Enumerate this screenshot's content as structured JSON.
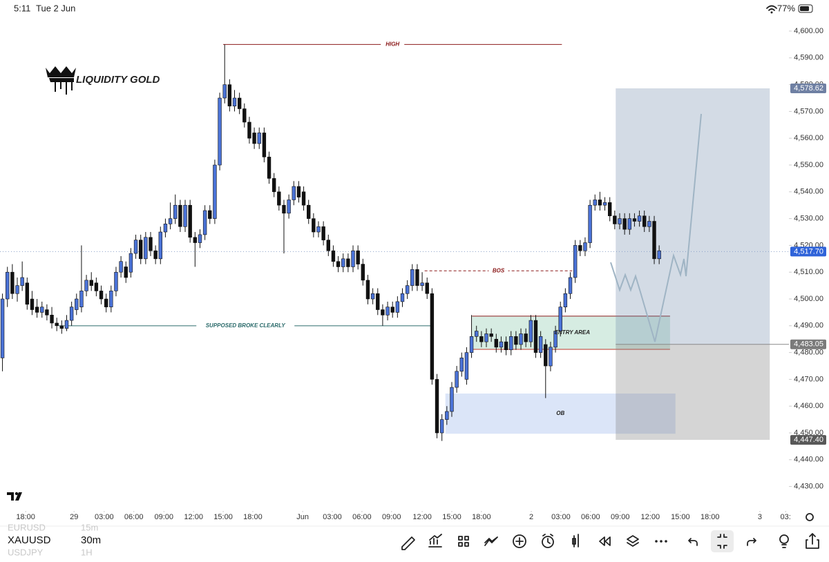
{
  "status_bar": {
    "time": "5:11",
    "date": "Tue 2 Jun",
    "battery": "77%"
  },
  "logo": "LIQUIDITY GOLD",
  "chart_data": {
    "type": "candlestick",
    "symbol": "XAUUSD",
    "timeframe": "30m",
    "up_color": "#4a72d6",
    "down_color": "#111111",
    "ylim": [
      4421.4,
      4611.6
    ],
    "yticks": [
      {
        "value": 4430,
        "label": "4,430.00"
      },
      {
        "value": 4440,
        "label": "4,440.00"
      },
      {
        "value": 4450,
        "label": "4,450.00"
      },
      {
        "value": 4460,
        "label": "4,460.00"
      },
      {
        "value": 4470,
        "label": "4,470.00"
      },
      {
        "value": 4480,
        "label": "4,480.00"
      },
      {
        "value": 4490,
        "label": "4,490.00"
      },
      {
        "value": 4500,
        "label": "4,500.00"
      },
      {
        "value": 4510,
        "label": "4,510.00"
      },
      {
        "value": 4520,
        "label": "4,520.00"
      },
      {
        "value": 4530,
        "label": "4,530.00"
      },
      {
        "value": 4540,
        "label": "4,540.00"
      },
      {
        "value": 4550,
        "label": "4,550.00"
      },
      {
        "value": 4560,
        "label": "4,560.00"
      },
      {
        "value": 4570,
        "label": "4,570.00"
      },
      {
        "value": 4580,
        "label": "4,580.00"
      },
      {
        "value": 4590,
        "label": "4,590.00"
      },
      {
        "value": 4600,
        "label": "4,600.00"
      }
    ],
    "xlim": [
      -0.5,
      159
    ],
    "xticks": [
      {
        "value": 4.7,
        "label": "18:00"
      },
      {
        "value": 14.5,
        "label": "29"
      },
      {
        "value": 20.6,
        "label": "03:00"
      },
      {
        "value": 26.6,
        "label": "06:00"
      },
      {
        "value": 32.7,
        "label": "09:00"
      },
      {
        "value": 38.7,
        "label": "12:00"
      },
      {
        "value": 44.7,
        "label": "15:00"
      },
      {
        "value": 50.7,
        "label": "18:00"
      },
      {
        "value": 60.8,
        "label": "Jun"
      },
      {
        "value": 66.8,
        "label": "03:00"
      },
      {
        "value": 72.8,
        "label": "06:00"
      },
      {
        "value": 78.8,
        "label": "09:00"
      },
      {
        "value": 85,
        "label": "12:00"
      },
      {
        "value": 91,
        "label": "15:00"
      },
      {
        "value": 97,
        "label": "18:00"
      },
      {
        "value": 107.1,
        "label": "2"
      },
      {
        "value": 113.1,
        "label": "03:00"
      },
      {
        "value": 119.1,
        "label": "06:00"
      },
      {
        "value": 125.1,
        "label": "09:00"
      },
      {
        "value": 131.2,
        "label": "12:00"
      },
      {
        "value": 137.3,
        "label": "15:00"
      },
      {
        "value": 143.3,
        "label": "18:00"
      },
      {
        "value": 153.4,
        "label": "3"
      },
      {
        "value": 158.6,
        "label": "03:"
      }
    ],
    "candles": [
      [
        4478,
        4502,
        4473,
        4500
      ],
      [
        4500,
        4512,
        4497,
        4510
      ],
      [
        4510,
        4513,
        4500,
        4502
      ],
      [
        4502,
        4508,
        4499,
        4505
      ],
      [
        4505,
        4514,
        4503,
        4508
      ],
      [
        4506,
        4508,
        4496,
        4498
      ],
      [
        4500,
        4503,
        4494,
        4496
      ],
      [
        4497,
        4500,
        4493,
        4495
      ],
      [
        4495,
        4499,
        4493,
        4497
      ],
      [
        4496,
        4498,
        4492,
        4494
      ],
      [
        4494,
        4497,
        4489,
        4491
      ],
      [
        4491,
        4493,
        4488,
        4490
      ],
      [
        4490,
        4492,
        4487,
        4489
      ],
      [
        4489,
        4494,
        4488,
        4492
      ],
      [
        4492,
        4499,
        4490,
        4497
      ],
      [
        4496,
        4502,
        4494,
        4500
      ],
      [
        4497,
        4520,
        4495,
        4503
      ],
      [
        4503,
        4509,
        4501,
        4507
      ],
      [
        4507,
        4510,
        4503,
        4505
      ],
      [
        4506,
        4508,
        4501,
        4503
      ],
      [
        4503,
        4505,
        4498,
        4500
      ],
      [
        4500,
        4502,
        4495,
        4497
      ],
      [
        4497,
        4505,
        4495,
        4503
      ],
      [
        4503,
        4512,
        4501,
        4510
      ],
      [
        4510,
        4516,
        4508,
        4514
      ],
      [
        4512,
        4514,
        4506,
        4508
      ],
      [
        4510,
        4519,
        4508,
        4517
      ],
      [
        4517,
        4524,
        4515,
        4522
      ],
      [
        4522,
        4524,
        4513,
        4515
      ],
      [
        4515,
        4525,
        4513,
        4523
      ],
      [
        4523,
        4525,
        4516,
        4518
      ],
      [
        4518,
        4520,
        4513,
        4515
      ],
      [
        4515,
        4527,
        4513,
        4525
      ],
      [
        4525,
        4530,
        4523,
        4528
      ],
      [
        4528,
        4536,
        4526,
        4530
      ],
      [
        4530,
        4539,
        4528,
        4535
      ],
      [
        4535,
        4537,
        4525,
        4527
      ],
      [
        4527,
        4537,
        4525,
        4535
      ],
      [
        4535,
        4537,
        4521,
        4523
      ],
      [
        4523,
        4525,
        4512,
        4521
      ],
      [
        4521,
        4526,
        4519,
        4524
      ],
      [
        4524,
        4535,
        4522,
        4533
      ],
      [
        4533,
        4535,
        4528,
        4530
      ],
      [
        4530,
        4552,
        4528,
        4550
      ],
      [
        4550,
        4577,
        4548,
        4575
      ],
      [
        4575,
        4595,
        4573,
        4580
      ],
      [
        4580,
        4582,
        4570,
        4572
      ],
      [
        4572,
        4578,
        4570,
        4575
      ],
      [
        4575,
        4577,
        4569,
        4571
      ],
      [
        4571,
        4573,
        4564,
        4566
      ],
      [
        4566,
        4568,
        4558,
        4560
      ],
      [
        4562,
        4564,
        4556,
        4558
      ],
      [
        4558,
        4564,
        4556,
        4562
      ],
      [
        4562,
        4564,
        4551,
        4553
      ],
      [
        4553,
        4555,
        4543,
        4545
      ],
      [
        4545,
        4547,
        4538,
        4540
      ],
      [
        4540,
        4542,
        4533,
        4535
      ],
      [
        4535,
        4537,
        4517,
        4532
      ],
      [
        4532,
        4539,
        4530,
        4537
      ],
      [
        4537,
        4544,
        4535,
        4542
      ],
      [
        4542,
        4544,
        4536,
        4538
      ],
      [
        4540,
        4542,
        4533,
        4535
      ],
      [
        4535,
        4537,
        4528,
        4530
      ],
      [
        4530,
        4532,
        4523,
        4525
      ],
      [
        4525,
        4529,
        4523,
        4527
      ],
      [
        4527,
        4529,
        4520,
        4522
      ],
      [
        4522,
        4524,
        4516,
        4518
      ],
      [
        4518,
        4520,
        4512,
        4514
      ],
      [
        4514,
        4516,
        4510,
        4512
      ],
      [
        4512,
        4517,
        4510,
        4515
      ],
      [
        4515,
        4517,
        4510,
        4512
      ],
      [
        4512,
        4520,
        4510,
        4518
      ],
      [
        4518,
        4520,
        4511,
        4513
      ],
      [
        4513,
        4515,
        4505,
        4507
      ],
      [
        4507,
        4509,
        4498,
        4500
      ],
      [
        4500,
        4504,
        4498,
        4502
      ],
      [
        4502,
        4504,
        4494,
        4496
      ],
      [
        4496,
        4498,
        4490,
        4494
      ],
      [
        4494,
        4499,
        4492,
        4497
      ],
      [
        4497,
        4499,
        4493,
        4495
      ],
      [
        4495,
        4501,
        4493,
        4499
      ],
      [
        4499,
        4504,
        4497,
        4502
      ],
      [
        4502,
        4507,
        4500,
        4505
      ],
      [
        4505,
        4513,
        4503,
        4511
      ],
      [
        4511,
        4513,
        4503,
        4505
      ],
      [
        4505,
        4510,
        4503,
        4506
      ],
      [
        4506,
        4508,
        4500,
        4502
      ],
      [
        4502,
        4504,
        4468,
        4470
      ],
      [
        4470,
        4472,
        4448,
        4450
      ],
      [
        4450,
        4457,
        4447,
        4455
      ],
      [
        4455,
        4460,
        4453,
        4458
      ],
      [
        4458,
        4469,
        4456,
        4467
      ],
      [
        4467,
        4475,
        4465,
        4473
      ],
      [
        4473,
        4480,
        4471,
        4478
      ],
      [
        4470,
        4482,
        4468,
        4480
      ],
      [
        4480,
        4494,
        4478,
        4486
      ],
      [
        4486,
        4490,
        4484,
        4488
      ],
      [
        4486,
        4488,
        4482,
        4484
      ],
      [
        4484,
        4489,
        4482,
        4487
      ],
      [
        4487,
        4489,
        4484,
        4486
      ],
      [
        4485,
        4487,
        4480,
        4482
      ],
      [
        4482,
        4486,
        4480,
        4484
      ],
      [
        4484,
        4486,
        4479,
        4481
      ],
      [
        4481,
        4488,
        4479,
        4486
      ],
      [
        4486,
        4488,
        4481,
        4483
      ],
      [
        4483,
        4489,
        4481,
        4487
      ],
      [
        4487,
        4489,
        4482,
        4484
      ],
      [
        4484,
        4494,
        4482,
        4492
      ],
      [
        4492,
        4494,
        4478,
        4480
      ],
      [
        4480,
        4488,
        4478,
        4486
      ],
      [
        4483,
        4485,
        4463,
        4475
      ],
      [
        4475,
        4484,
        4473,
        4482
      ],
      [
        4482,
        4490,
        4480,
        4488
      ],
      [
        4488,
        4499,
        4486,
        4497
      ],
      [
        4497,
        4504,
        4495,
        4502
      ],
      [
        4502,
        4510,
        4500,
        4508
      ],
      [
        4508,
        4522,
        4506,
        4520
      ],
      [
        4520,
        4522,
        4516,
        4518
      ],
      [
        4518,
        4523,
        4516,
        4521
      ],
      [
        4521,
        4537,
        4519,
        4535
      ],
      [
        4535,
        4539,
        4533,
        4537
      ],
      [
        4537,
        4540,
        4533,
        4535
      ],
      [
        4535,
        4538,
        4533,
        4536
      ],
      [
        4536,
        4538,
        4529,
        4531
      ],
      [
        4531,
        4533,
        4526,
        4528
      ],
      [
        4528,
        4532,
        4526,
        4530
      ],
      [
        4530,
        4532,
        4524,
        4526
      ],
      [
        4526,
        4532,
        4524,
        4530
      ],
      [
        4530,
        4532,
        4527,
        4529
      ],
      [
        4529,
        4533,
        4527,
        4531
      ],
      [
        4531,
        4533,
        4525,
        4527
      ],
      [
        4527,
        4531,
        4525,
        4529
      ],
      [
        4529,
        4531,
        4513,
        4515
      ],
      [
        4515,
        4520,
        4513,
        4518
      ]
    ],
    "last_price": {
      "value": 4517.7,
      "label": "4,517.70",
      "color": "#2f63d9"
    },
    "position": {
      "from": 124.2,
      "to": 155.4,
      "target": {
        "value": 4578.62,
        "label": "4,578.62",
        "color": "#6f80a3"
      },
      "entry": {
        "value": 4483.05,
        "label": "4,483.05",
        "color": "#7a7a7a"
      },
      "stop": {
        "value": 4447.4,
        "label": "4,447.40",
        "color": "#585858"
      }
    },
    "annotations": [
      {
        "text": "HIGH",
        "value": 4595,
        "from": 44.7,
        "to": 113.3,
        "style": "solid",
        "color": "#8b1a1a"
      },
      {
        "text": "BOS",
        "value": 4510.5,
        "from": 85.5,
        "to": 115.4,
        "style": "dashed",
        "color": "#8b1a1a"
      },
      {
        "text": "SUPPOSED BROKE CLEARLY",
        "value": 4490,
        "from": 11.4,
        "to": 87,
        "style": "solid",
        "color": "#2a6a6a"
      }
    ],
    "zones": [
      {
        "text": "ENTRY AREA",
        "top": 4493.6,
        "bottom": 4481.2,
        "from": 95.1,
        "to": 135.2,
        "fill": "#d6ece2",
        "border": "#8b1a1a"
      },
      {
        "text": "OB",
        "top": 4464.7,
        "bottom": 4449.7,
        "from": 89.7,
        "to": 136.3,
        "fill": "#dbe5f8",
        "border": "none"
      }
    ]
  },
  "watchlist": [
    {
      "symbol": "EURUSD",
      "timeframe": "15m"
    },
    {
      "symbol": "XAUUSD",
      "timeframe": "30m"
    },
    {
      "symbol": "USDJPY",
      "timeframe": "1H"
    }
  ]
}
